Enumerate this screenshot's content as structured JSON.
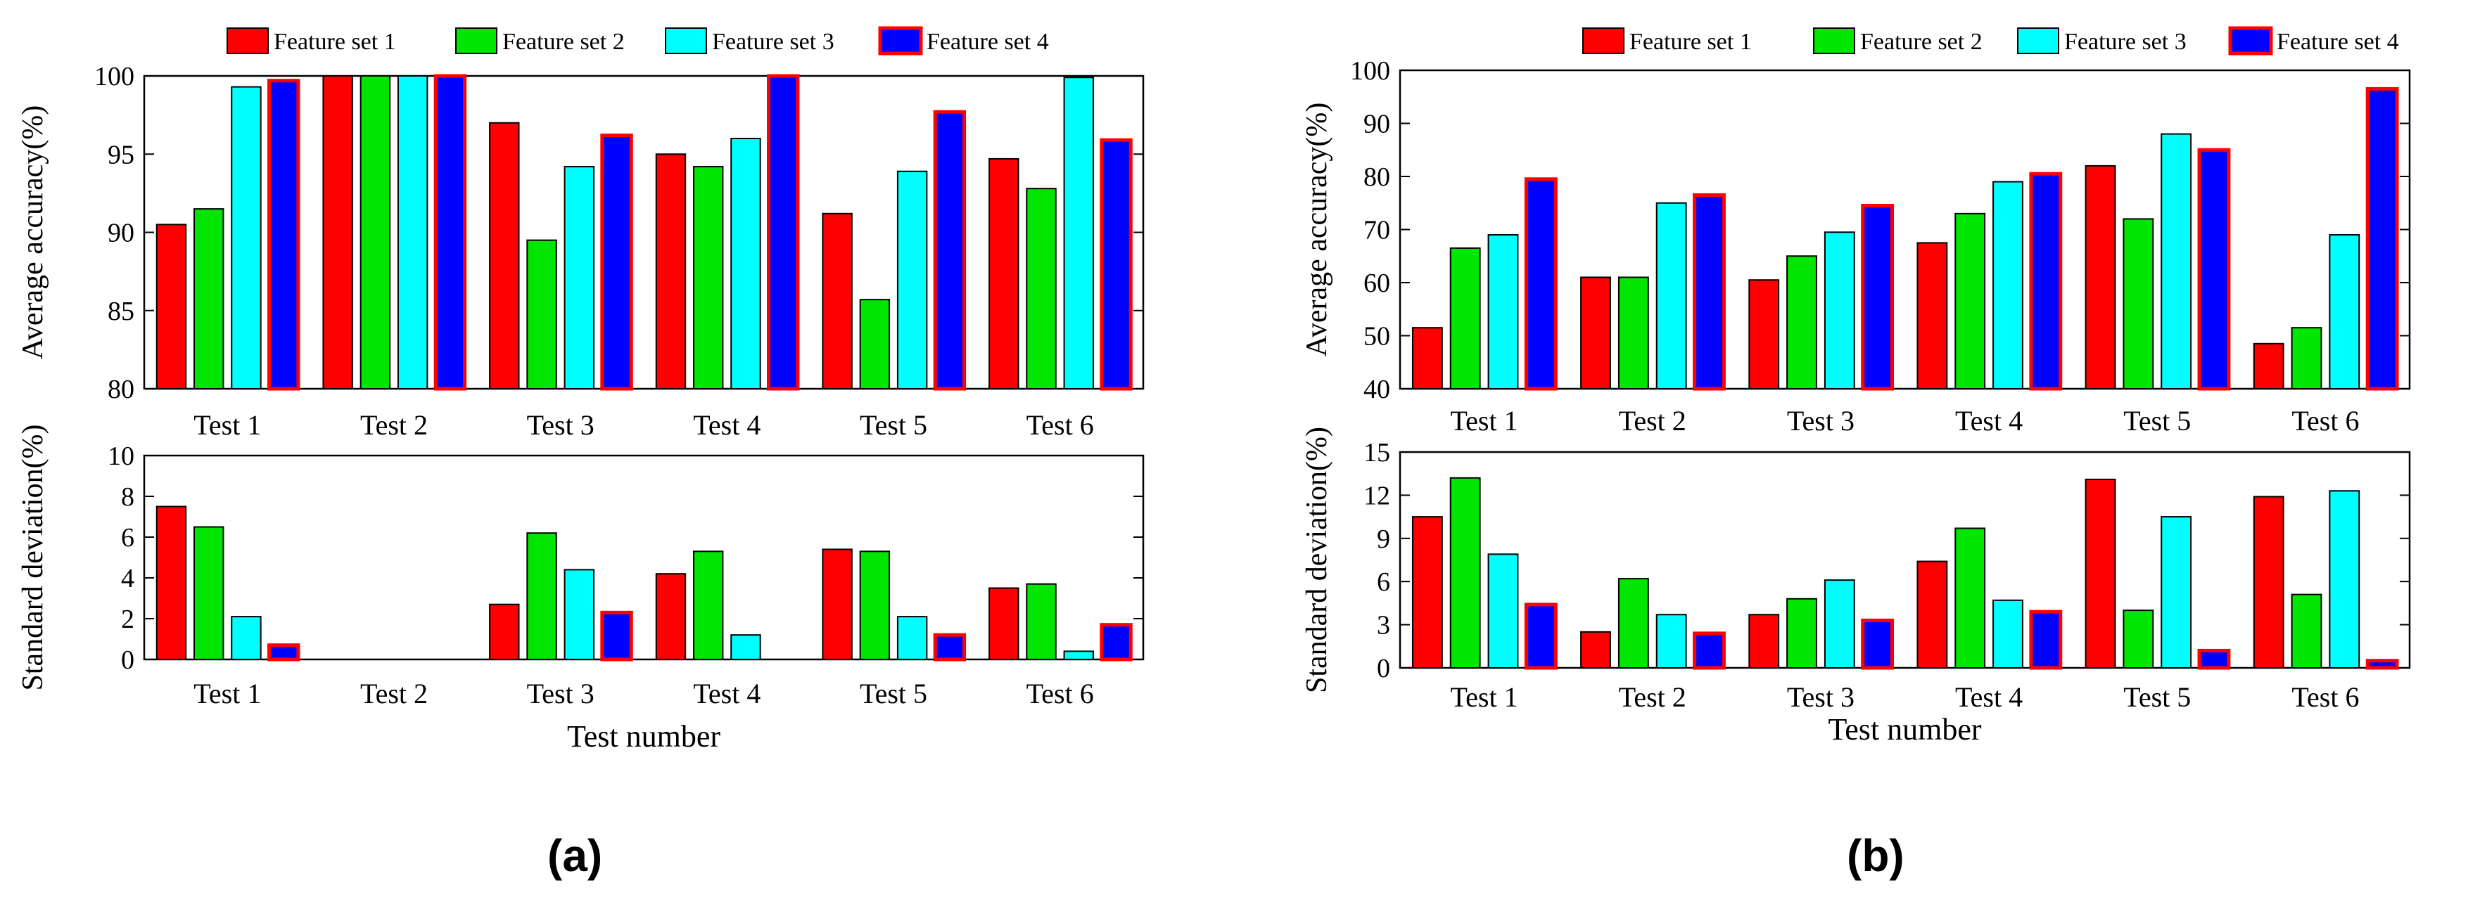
{
  "legend": {
    "labels": [
      "Feature set 1",
      "Feature set 2",
      "Feature set 3",
      "Feature set 4"
    ],
    "fill_colors": [
      "#ff0000",
      "#00e600",
      "#00ffff",
      "#0000ff"
    ],
    "stroke_colors": [
      "#000000",
      "#000000",
      "#000000",
      "#ff0000"
    ]
  },
  "chart_data": [
    {
      "panel": "(a)",
      "type": "bar",
      "categories": [
        "Test 1",
        "Test 2",
        "Test 3",
        "Test 4",
        "Test 5",
        "Test 6"
      ],
      "ylabel": "Average accuracy(%)",
      "xlabel": "",
      "ylim": [
        80,
        100
      ],
      "yticks": [
        "80",
        "85",
        "90",
        "95",
        "100"
      ],
      "series": [
        {
          "name": "Feature set 1",
          "values": [
            90.5,
            100,
            97,
            95,
            91.2,
            94.7
          ]
        },
        {
          "name": "Feature set 2",
          "values": [
            91.5,
            100,
            89.5,
            94.2,
            85.7,
            92.8
          ]
        },
        {
          "name": "Feature set 3",
          "values": [
            99.3,
            100,
            94.2,
            96,
            93.9,
            99.9
          ]
        },
        {
          "name": "Feature set 4",
          "values": [
            99.7,
            100,
            96.2,
            100,
            97.7,
            95.9
          ]
        }
      ]
    },
    {
      "panel": "(a)",
      "type": "bar",
      "categories": [
        "Test 1",
        "Test 2",
        "Test 3",
        "Test 4",
        "Test 5",
        "Test 6"
      ],
      "ylabel": "Standard deviation(%)",
      "xlabel": "Test number",
      "ylim": [
        0,
        10
      ],
      "yticks": [
        "0",
        "2",
        "4",
        "6",
        "8",
        "10"
      ],
      "series": [
        {
          "name": "Feature set 1",
          "values": [
            7.5,
            0,
            2.7,
            4.2,
            5.4,
            3.5
          ]
        },
        {
          "name": "Feature set 2",
          "values": [
            6.5,
            0,
            6.2,
            5.3,
            5.3,
            3.7
          ]
        },
        {
          "name": "Feature set 3",
          "values": [
            2.1,
            0,
            4.4,
            1.2,
            2.1,
            0.4
          ]
        },
        {
          "name": "Feature set 4",
          "values": [
            0.7,
            0,
            2.3,
            0,
            1.2,
            1.7
          ]
        }
      ]
    },
    {
      "panel": "(b)",
      "type": "bar",
      "categories": [
        "Test 1",
        "Test 2",
        "Test 3",
        "Test 4",
        "Test 5",
        "Test 6"
      ],
      "ylabel": "Average accuracy(%)",
      "xlabel": "",
      "ylim": [
        40,
        100
      ],
      "yticks": [
        "40",
        "50",
        "60",
        "70",
        "80",
        "90",
        "100"
      ],
      "series": [
        {
          "name": "Feature set 1",
          "values": [
            51.5,
            61,
            60.5,
            67.5,
            82,
            48.5
          ]
        },
        {
          "name": "Feature set 2",
          "values": [
            66.5,
            61,
            65,
            73,
            72,
            51.5
          ]
        },
        {
          "name": "Feature set 3",
          "values": [
            69,
            75,
            69.5,
            79,
            88,
            69
          ]
        },
        {
          "name": "Feature set 4",
          "values": [
            79.5,
            76.5,
            74.5,
            80.5,
            85,
            96.5
          ]
        }
      ]
    },
    {
      "panel": "(b)",
      "type": "bar",
      "categories": [
        "Test 1",
        "Test 2",
        "Test 3",
        "Test 4",
        "Test 5",
        "Test 6"
      ],
      "ylabel": "Standard deviation(%)",
      "xlabel": "Test number",
      "ylim": [
        0,
        15
      ],
      "yticks": [
        "0",
        "3",
        "6",
        "9",
        "12",
        "15"
      ],
      "series": [
        {
          "name": "Feature set 1",
          "values": [
            10.5,
            2.5,
            3.7,
            7.4,
            13.1,
            11.9
          ]
        },
        {
          "name": "Feature set 2",
          "values": [
            13.2,
            6.2,
            4.8,
            9.7,
            4,
            5.1
          ]
        },
        {
          "name": "Feature set 3",
          "values": [
            7.9,
            3.7,
            6.1,
            4.7,
            10.5,
            12.3
          ]
        },
        {
          "name": "Feature set 4",
          "values": [
            4.4,
            2.4,
            3.3,
            3.9,
            1.2,
            0.5
          ]
        }
      ]
    }
  ],
  "panel_labels": [
    "(a)",
    "(b)"
  ]
}
